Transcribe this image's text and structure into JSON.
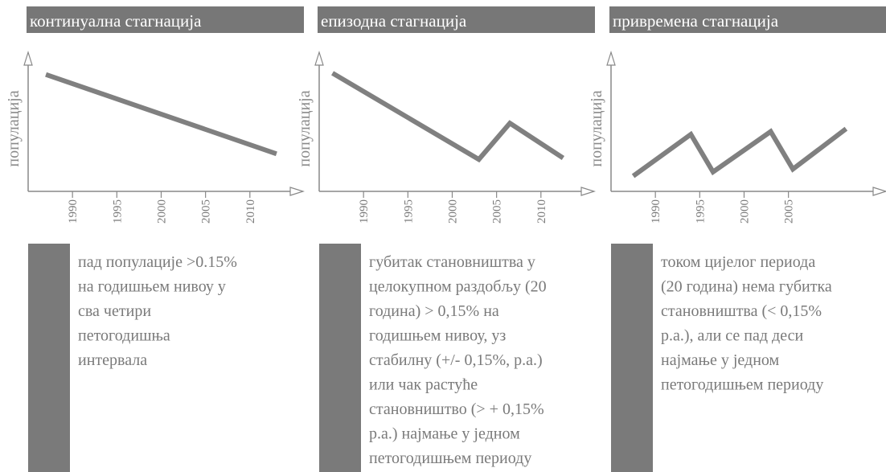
{
  "chart_data": [
    {
      "type": "line",
      "title": "континуална стагнација",
      "ylabel": "популација",
      "x": [
        1987,
        2013
      ],
      "series": [
        {
          "color": "#808080",
          "values": [
            84,
            27
          ]
        }
      ],
      "xlim": [
        1985,
        2016
      ],
      "ylim": [
        0,
        100
      ],
      "xticks": [
        1990,
        1995,
        2000,
        2005,
        2010
      ],
      "description": [
        "пад популације >0.15%",
        "на годишњем нивоу у",
        "сва четири",
        "петогодишња",
        "интервала"
      ]
    },
    {
      "type": "line",
      "title": "епизодна стагнација",
      "ylabel": "популација",
      "x": [
        1986.5,
        2003,
        2006.5,
        2012.5
      ],
      "series": [
        {
          "color": "#808080",
          "values": [
            85,
            23,
            49,
            24
          ]
        }
      ],
      "xlim": [
        1985,
        2016
      ],
      "ylim": [
        0,
        100
      ],
      "xticks": [
        1990,
        1995,
        2000,
        2005,
        2010
      ],
      "description": [
        "губитак становништва у",
        "целокупном раздобљу (20",
        "година) > 0,15% на",
        "годишњем нивоу, уз",
        "стабилну (+/- 0,15%, р.а.)",
        "или чак растуће",
        "становништво (> + 0,15%",
        "р.а.) најмање у једном",
        "петогодишњем периоду"
      ]
    },
    {
      "type": "line",
      "title": "привремена стагнација",
      "ylabel": "популација",
      "x": [
        1987.5,
        1994,
        1996.5,
        2003,
        2005.5,
        2011.5
      ],
      "series": [
        {
          "color": "#808080",
          "values": [
            11,
            41,
            14,
            43,
            16,
            45
          ]
        }
      ],
      "xlim": [
        1985,
        2016
      ],
      "ylim": [
        0,
        100
      ],
      "xticks": [
        1990,
        1995,
        2000,
        2005
      ],
      "description": [
        "током цијелог периода",
        "(20 година) нема губитка",
        "становништва (< 0,15%",
        "р.а.), али се пад деси",
        "најмање у једном",
        "петогодишњем периоду"
      ]
    }
  ]
}
